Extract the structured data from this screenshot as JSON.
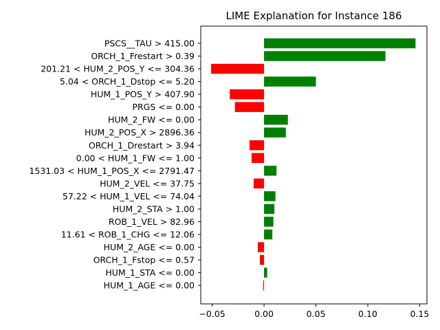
{
  "chart_data": {
    "type": "bar",
    "orientation": "horizontal",
    "title": "LIME Explanation for Instance 186",
    "xlabel": "",
    "ylabel": "",
    "xlim": [
      -0.061,
      0.157
    ],
    "xticks": [
      -0.05,
      0.0,
      0.05,
      0.1,
      0.15
    ],
    "xtick_labels": [
      "−0.05",
      "0.00",
      "0.05",
      "0.10",
      "0.15"
    ],
    "grid": false,
    "positive_color": "#008000",
    "negative_color": "#ff0000",
    "categories": [
      "PSCS__TAU > 415.00",
      "ORCH_1_Frestart > 0.39",
      "201.21 < HUM_2_POS_Y <= 304.36",
      "5.04 < ORCH_1_Dstop <= 5.20",
      "HUM_1_POS_Y > 407.90",
      "PRGS <= 0.00",
      "HUM_2_FW <= 0.00",
      "HUM_2_POS_X > 2896.36",
      "ORCH_1_Drestart > 3.94",
      "0.00 < HUM_1_FW <= 1.00",
      "1531.03 < HUM_1_POS_X <= 2791.47",
      "HUM_2_VEL <= 37.75",
      "57.22 < HUM_1_VEL <= 74.04",
      "HUM_2_STA > 1.00",
      "ROB_1_VEL > 82.96",
      "11.61 < ROB_1_CHG <= 12.06",
      "HUM_2_AGE <= 0.00",
      "ORCH_1_Fstop <= 0.57",
      "HUM_1_STA <= 0.00",
      "HUM_1_AGE <= 0.00"
    ],
    "values": [
      0.146,
      0.117,
      -0.051,
      0.05,
      -0.033,
      -0.028,
      0.023,
      0.021,
      -0.014,
      -0.012,
      0.012,
      -0.01,
      0.011,
      0.01,
      0.009,
      0.008,
      -0.006,
      -0.004,
      0.003,
      -0.0008
    ]
  }
}
